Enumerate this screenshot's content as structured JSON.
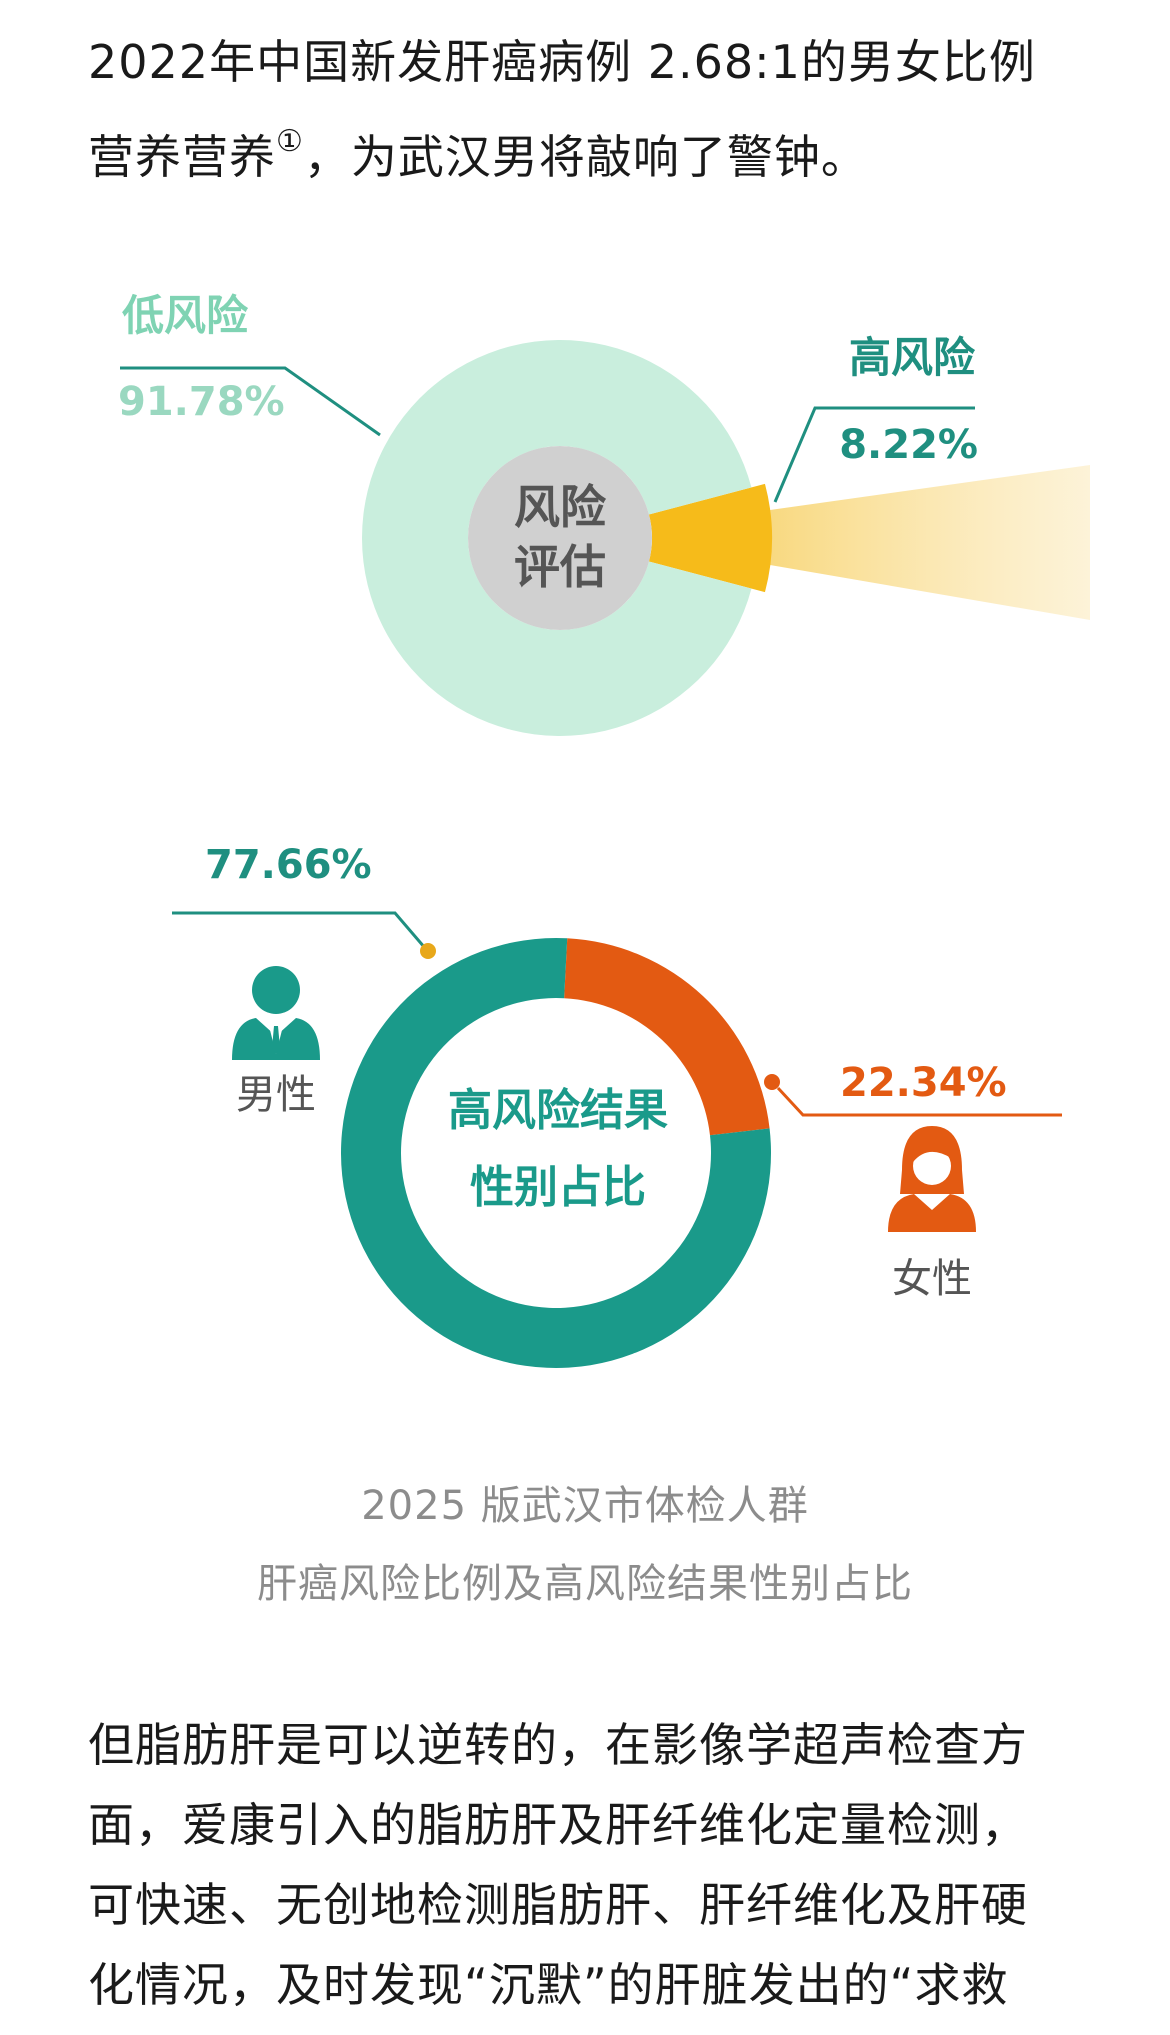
{
  "intro": {
    "line1": "2022年中国新发肝癌病例 2.68:1的男女比例",
    "line2_before": "营养营养",
    "footnote": "①",
    "line2_after": "，为武汉男将敲响了警钟。"
  },
  "chart_data": [
    {
      "type": "pie",
      "variant": "donut",
      "center_label": [
        "风险",
        "评估"
      ],
      "slices": [
        {
          "label": "低风险",
          "value": 91.78,
          "display": "91.78%",
          "color": "#c9eedd"
        },
        {
          "label": "高风险",
          "value": 8.22,
          "display": "8.22%",
          "color": "#f6bb1a"
        }
      ],
      "label_colors": {
        "low_label": "#7fd3b3",
        "low_value": "#9ad8c0",
        "high": "#1f8f80"
      },
      "center_color": "#d0d0d0"
    },
    {
      "type": "pie",
      "variant": "donut",
      "center_label": [
        "高风险结果",
        "性别占比"
      ],
      "slices": [
        {
          "label": "男性",
          "value": 77.66,
          "display": "77.66%",
          "color": "#1a9a8a"
        },
        {
          "label": "女性",
          "value": 22.34,
          "display": "22.34%",
          "color": "#e35a12"
        }
      ],
      "icons": {
        "male": "male-person-icon",
        "female": "female-person-icon"
      }
    }
  ],
  "caption": {
    "line1": "2025 版武汉市体检人群",
    "line2": "肝癌风险比例及高风险结果性别占比"
  },
  "body": {
    "lines": [
      "但脂肪肝是可以逆转的，在影像学超声检查方",
      "面，爱康引入的脂肪肝及肝纤维化定量检测，",
      "可快速、无创地检测脂肪肝、肝纤维化及肝硬",
      "化情况，及时发现“沉默”的肝脏发出的“求救"
    ]
  }
}
